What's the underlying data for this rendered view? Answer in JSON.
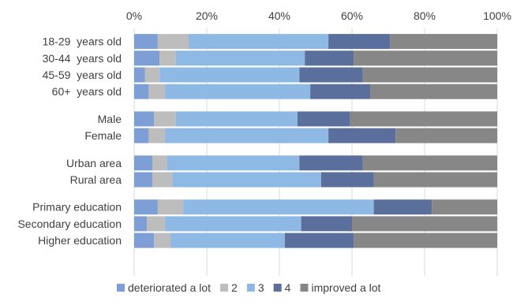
{
  "chart_data": {
    "type": "bar",
    "orientation": "horizontal",
    "stacked": "percent",
    "title": "",
    "xlabel": "",
    "ylabel": "",
    "xlim": [
      0,
      100
    ],
    "x_ticks": [
      "0%",
      "20%",
      "40%",
      "60%",
      "80%",
      "100%"
    ],
    "x_axis_position": "top",
    "grid": true,
    "legend_position": "bottom",
    "categories": [
      "18-29  years old",
      "30-44  years old",
      "45-59  years old",
      "60+  years old",
      "Male",
      "Female",
      "Urban area",
      "Rural area",
      "Primary education",
      "Secondary education",
      "Higher education"
    ],
    "groups": [
      [
        0,
        1,
        2,
        3
      ],
      [
        4,
        5
      ],
      [
        6,
        7
      ],
      [
        8,
        9,
        10
      ]
    ],
    "series": [
      {
        "name": "deteriorated a lot",
        "color": "#7e9fd6",
        "values": [
          6.5,
          7,
          3,
          4,
          5.5,
          4,
          5,
          5,
          6.5,
          3.5,
          5.5
        ]
      },
      {
        "name": "2",
        "color": "#bdbdbd",
        "values": [
          8.5,
          4.5,
          4,
          4.5,
          6,
          4.5,
          4,
          5.5,
          7,
          5,
          4.5
        ]
      },
      {
        "name": "3",
        "color": "#8db9e4",
        "values": [
          38.5,
          35.5,
          38.5,
          40,
          33.5,
          45,
          36.5,
          41,
          52.5,
          37.5,
          31.5
        ]
      },
      {
        "name": "4",
        "color": "#5b6f9c",
        "values": [
          17,
          13.5,
          17.5,
          16.5,
          14.5,
          18.5,
          17.5,
          14.5,
          16,
          14,
          19
        ]
      },
      {
        "name": "improved a lot",
        "color": "#878787",
        "values": [
          29.5,
          39.5,
          37,
          35,
          40.5,
          28,
          37,
          34,
          18,
          40,
          39.5
        ]
      }
    ]
  }
}
